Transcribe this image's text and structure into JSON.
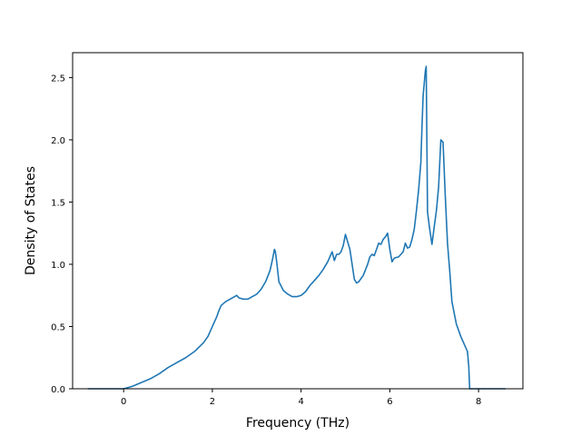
{
  "chart_data": {
    "type": "line",
    "title": "",
    "xlabel": "Frequency (THz)",
    "ylabel": "Density of States",
    "xlim": [
      -1.15,
      9.0
    ],
    "ylim": [
      0.0,
      2.7
    ],
    "xticks": [
      0,
      2,
      4,
      6,
      8
    ],
    "xtick_labels": [
      "0",
      "2",
      "4",
      "6",
      "8"
    ],
    "yticks": [
      0.0,
      0.5,
      1.0,
      1.5,
      2.0,
      2.5
    ],
    "ytick_labels": [
      "0.0",
      "0.5",
      "1.0",
      "1.5",
      "2.0",
      "2.5"
    ],
    "grid": false,
    "series": [
      {
        "color": "#1f77b4",
        "x": [
          -0.8,
          -0.4,
          0.0,
          0.2,
          0.4,
          0.6,
          0.8,
          1.0,
          1.1,
          1.2,
          1.4,
          1.6,
          1.8,
          1.9,
          2.0,
          2.1,
          2.15,
          2.2,
          2.3,
          2.4,
          2.5,
          2.55,
          2.6,
          2.7,
          2.8,
          2.9,
          3.0,
          3.1,
          3.2,
          3.3,
          3.35,
          3.4,
          3.42,
          3.45,
          3.5,
          3.6,
          3.7,
          3.8,
          3.9,
          4.0,
          4.1,
          4.2,
          4.3,
          4.4,
          4.5,
          4.6,
          4.7,
          4.75,
          4.8,
          4.85,
          4.9,
          4.95,
          5.0,
          5.1,
          5.2,
          5.25,
          5.3,
          5.4,
          5.5,
          5.55,
          5.6,
          5.65,
          5.7,
          5.75,
          5.8,
          5.85,
          5.9,
          5.95,
          6.0,
          6.05,
          6.1,
          6.2,
          6.3,
          6.35,
          6.4,
          6.45,
          6.5,
          6.55,
          6.6,
          6.65,
          6.7,
          6.72,
          6.75,
          6.8,
          6.82,
          6.85,
          6.9,
          6.95,
          7.0,
          7.05,
          7.1,
          7.15,
          7.2,
          7.25,
          7.3,
          7.35,
          7.4,
          7.5,
          7.6,
          7.7,
          7.75,
          7.78,
          7.8,
          8.0,
          8.3,
          8.6
        ],
        "y": [
          0.0,
          0.0,
          0.0,
          0.02,
          0.05,
          0.08,
          0.12,
          0.17,
          0.19,
          0.21,
          0.25,
          0.3,
          0.37,
          0.42,
          0.5,
          0.58,
          0.63,
          0.67,
          0.7,
          0.72,
          0.74,
          0.75,
          0.73,
          0.72,
          0.72,
          0.74,
          0.76,
          0.8,
          0.86,
          0.95,
          1.03,
          1.12,
          1.1,
          1.02,
          0.86,
          0.79,
          0.76,
          0.74,
          0.74,
          0.75,
          0.78,
          0.83,
          0.87,
          0.91,
          0.96,
          1.02,
          1.1,
          1.03,
          1.08,
          1.08,
          1.1,
          1.15,
          1.24,
          1.12,
          0.88,
          0.85,
          0.86,
          0.91,
          1.0,
          1.06,
          1.08,
          1.07,
          1.12,
          1.17,
          1.16,
          1.2,
          1.22,
          1.25,
          1.12,
          1.02,
          1.05,
          1.06,
          1.1,
          1.17,
          1.13,
          1.14,
          1.2,
          1.28,
          1.43,
          1.6,
          1.82,
          2.05,
          2.35,
          2.55,
          2.59,
          1.42,
          1.28,
          1.16,
          1.3,
          1.43,
          1.62,
          2.0,
          1.98,
          1.55,
          1.17,
          0.95,
          0.7,
          0.52,
          0.42,
          0.34,
          0.3,
          0.18,
          0.0,
          0.0,
          0.0,
          0.0
        ]
      }
    ]
  }
}
